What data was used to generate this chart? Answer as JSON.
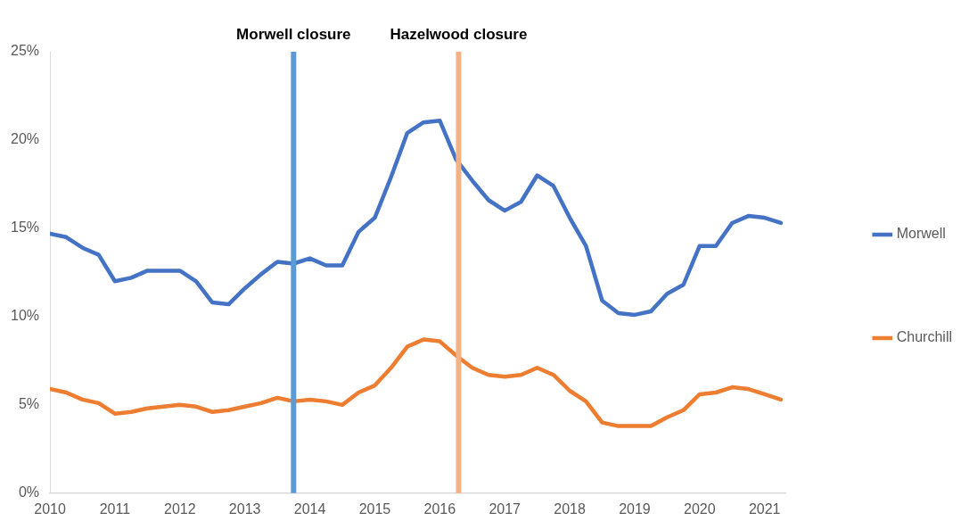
{
  "chart_data": {
    "type": "line",
    "x": [
      2010,
      2010.25,
      2010.5,
      2010.75,
      2011,
      2011.25,
      2011.5,
      2011.75,
      2012,
      2012.25,
      2012.5,
      2012.75,
      2013,
      2013.25,
      2013.5,
      2013.75,
      2014,
      2014.25,
      2014.5,
      2014.75,
      2015,
      2015.25,
      2015.5,
      2015.75,
      2016,
      2016.25,
      2016.5,
      2016.75,
      2017,
      2017.25,
      2017.5,
      2017.75,
      2018,
      2018.25,
      2018.5,
      2018.75,
      2019,
      2019.25,
      2019.5,
      2019.75,
      2020,
      2020.25,
      2020.5,
      2020.75,
      2021,
      2021.25
    ],
    "series": [
      {
        "name": "Morwell",
        "color": "#4472c4",
        "values": [
          14.7,
          14.5,
          13.9,
          13.5,
          12.0,
          12.2,
          12.6,
          12.6,
          12.6,
          12.0,
          10.8,
          10.7,
          11.6,
          12.4,
          13.1,
          13.0,
          13.3,
          12.9,
          12.9,
          14.8,
          15.6,
          17.9,
          20.4,
          21.0,
          21.1,
          18.9,
          17.7,
          16.6,
          16.0,
          16.5,
          18.0,
          17.4,
          15.6,
          14.0,
          10.9,
          10.2,
          10.1,
          10.3,
          11.3,
          11.8,
          14.0,
          14.0,
          15.3,
          15.7,
          15.6,
          15.3
        ]
      },
      {
        "name": "Churchill",
        "color": "#ed7d31",
        "values": [
          5.9,
          5.7,
          5.3,
          5.1,
          4.5,
          4.6,
          4.8,
          4.9,
          5.0,
          4.9,
          4.6,
          4.7,
          4.9,
          5.1,
          5.4,
          5.2,
          5.3,
          5.2,
          5.0,
          5.7,
          6.1,
          7.1,
          8.3,
          8.7,
          8.6,
          7.8,
          7.1,
          6.7,
          6.6,
          6.7,
          7.1,
          6.7,
          5.8,
          5.2,
          4.0,
          3.8,
          3.8,
          3.8,
          4.3,
          4.7,
          5.6,
          5.7,
          6.0,
          5.9,
          5.6,
          5.3
        ]
      }
    ],
    "xlim": [
      2010,
      2021.33
    ],
    "xticks": [
      2010,
      2011,
      2012,
      2013,
      2014,
      2015,
      2016,
      2017,
      2018,
      2019,
      2020,
      2021
    ],
    "ylim": [
      0,
      25
    ],
    "yticks": [
      {
        "value": 0,
        "label": "0%"
      },
      {
        "value": 5,
        "label": "5%"
      },
      {
        "value": 10,
        "label": "10%"
      },
      {
        "value": 15,
        "label": "15%"
      },
      {
        "value": 20,
        "label": "20%"
      },
      {
        "value": 25,
        "label": "25%"
      }
    ],
    "ref_lines": [
      {
        "axis": "x",
        "value": 2013.75,
        "label": "Morwell closure",
        "color": "#5b9bd5"
      },
      {
        "axis": "x",
        "value": 2016.29,
        "label": "Hazelwood closure",
        "color": "#f4b183"
      }
    ],
    "grid": false,
    "legend": "right",
    "marker": "none",
    "line_style": "solid"
  }
}
